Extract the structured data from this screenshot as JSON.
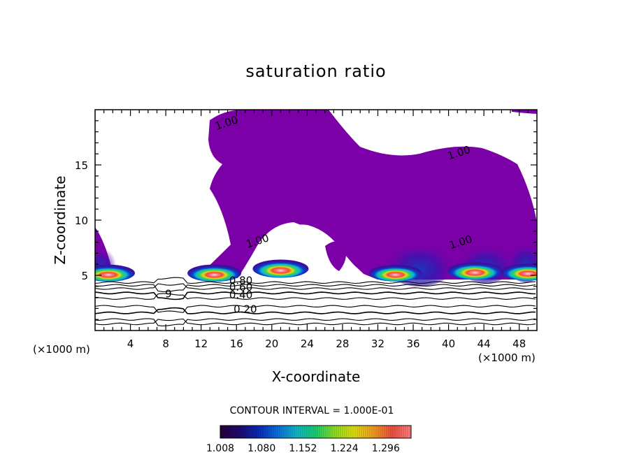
{
  "chart_data": {
    "type": "heatmap",
    "title": "saturation ratio",
    "xlabel": "X-coordinate",
    "ylabel": "Z-coordinate",
    "x_unit_left": "(×1000 m)",
    "x_unit_right": "(×1000 m)",
    "xlim": [
      0,
      50
    ],
    "ylim": [
      0,
      20
    ],
    "x_ticks": [
      4,
      8,
      12,
      16,
      20,
      24,
      28,
      32,
      36,
      40,
      44,
      48
    ],
    "y_ticks": [
      5,
      10,
      15
    ],
    "contour_interval_text": "CONTOUR INTERVAL = 1.000E-01",
    "contour_labels": [
      {
        "text": "1.00",
        "x": 15.0,
        "y": 18.5
      },
      {
        "text": "1.00",
        "x": 41.3,
        "y": 15.8
      },
      {
        "text": "1.00",
        "x": 18.5,
        "y": 7.8
      },
      {
        "text": "1.00",
        "x": 41.5,
        "y": 7.7
      },
      {
        "text": "0.80",
        "x": 16.5,
        "y": 4.2
      },
      {
        "text": "0.60",
        "x": 16.5,
        "y": 3.6
      },
      {
        "text": "0.40",
        "x": 16.5,
        "y": 2.9
      },
      {
        "text": "0.20",
        "x": 17.0,
        "y": 1.6
      },
      {
        "text": "9",
        "x": 8.3,
        "y": 3.0
      }
    ],
    "colorbar": {
      "min": 1.008,
      "max": 1.34,
      "labels": [
        "1.008",
        "1.080",
        "1.152",
        "1.224",
        "1.296"
      ],
      "colors": [
        "#2a0038",
        "#1c0a70",
        "#0a2ab8",
        "#0a70e0",
        "#10b8c8",
        "#18d070",
        "#90e020",
        "#e0e010",
        "#f0a020",
        "#f05040",
        "#ff8080"
      ]
    },
    "fill_color": "#7b00a8",
    "cloud_cores": [
      {
        "x_center": 1.5,
        "z": 5.2,
        "intensity": 0.8
      },
      {
        "x_center": 13.5,
        "z": 5.2,
        "intensity": 0.85
      },
      {
        "x_center": 21.0,
        "z": 5.6,
        "intensity": 1.0
      },
      {
        "x_center": 34.0,
        "z": 5.2,
        "intensity": 0.75
      },
      {
        "x_center": 43.0,
        "z": 5.4,
        "intensity": 0.9
      },
      {
        "x_center": 49.0,
        "z": 5.3,
        "intensity": 0.8
      }
    ]
  }
}
